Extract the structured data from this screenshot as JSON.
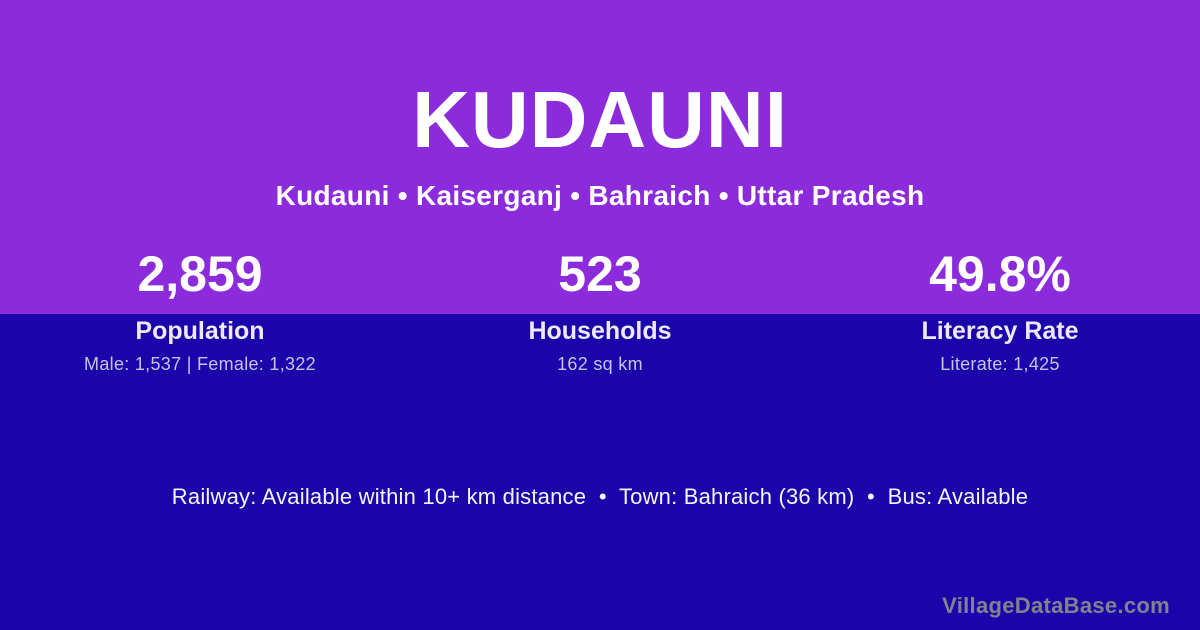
{
  "colors": {
    "background_purple": "#8B2BDB",
    "background_navy": "#1B04AA",
    "text_white": "#FFFFFF",
    "stat_label": "#EDE9F7",
    "stat_detail_lavender": "#C9C2E5",
    "watermark_grey": "#82828E"
  },
  "header": {
    "title": "KUDAUNI",
    "location_path": "Kudauni • Kaiserganj • Bahraich • Uttar Pradesh"
  },
  "stats": [
    {
      "value": "2,859",
      "label": "Population",
      "detail": "Male: 1,537 | Female: 1,322"
    },
    {
      "value": "523",
      "label": "Households",
      "detail": "162 sq km"
    },
    {
      "value": "49.8%",
      "label": "Literacy Rate",
      "detail": "Literate: 1,425"
    }
  ],
  "footer": {
    "transport_line": "Railway: Available within 10+ km distance  •  Town: Bahraich (36 km)  •  Bus: Available",
    "watermark": "VillageDataBase.com"
  }
}
